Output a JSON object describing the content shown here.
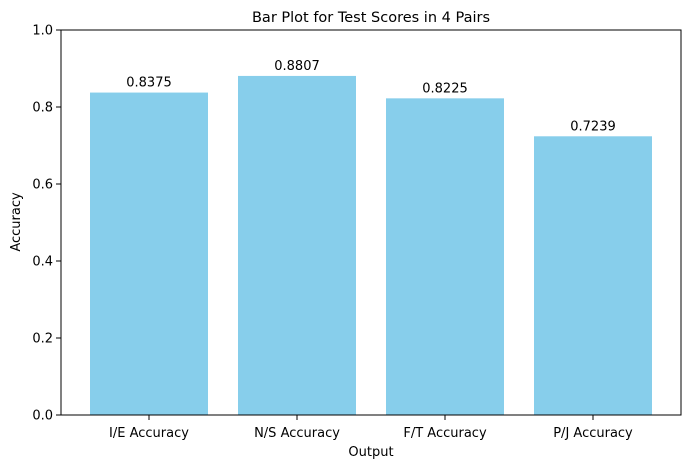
{
  "chart_data": {
    "type": "bar",
    "title": "Bar Plot for Test Scores in 4 Pairs",
    "xlabel": "Output",
    "ylabel": "Accuracy",
    "categories": [
      "I/E Accuracy",
      "N/S Accuracy",
      "F/T Accuracy",
      "P/J Accuracy"
    ],
    "values": [
      0.8375,
      0.8807,
      0.8225,
      0.7239
    ],
    "value_labels": [
      "0.8375",
      "0.8807",
      "0.8225",
      "0.7239"
    ],
    "ylim": [
      0,
      1.0
    ],
    "yticks": [
      0.0,
      0.2,
      0.4,
      0.6,
      0.8,
      1.0
    ],
    "ytick_labels": [
      "0.0",
      "0.2",
      "0.4",
      "0.6",
      "0.8",
      "1.0"
    ],
    "grid": false,
    "bar_color": "#87ceeb"
  }
}
